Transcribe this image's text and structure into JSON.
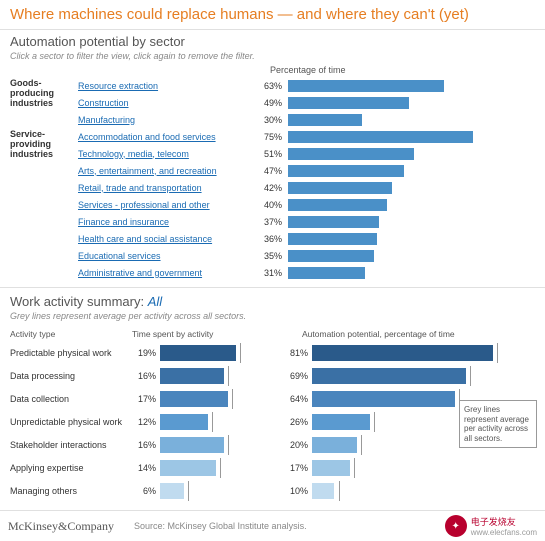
{
  "main_title": "Where machines could replace humans — and where they can't (yet)",
  "section1_title": "Automation potential by sector",
  "hint_text": "Click a sector to filter the view, click again to remove the filter.",
  "pct_header": "Percentage of time",
  "chart1": {
    "type": "bar",
    "bar_color": "#4a90c8",
    "link_color": "#1a6bb3",
    "max": 100,
    "groups": [
      {
        "label": "Goods-producing industries",
        "rows": [
          {
            "name": "Resource extraction",
            "pct": 63
          },
          {
            "name": "Construction",
            "pct": 49
          },
          {
            "name": "Manufacturing",
            "pct": 30
          }
        ]
      },
      {
        "label": "Service-providing industries",
        "rows": [
          {
            "name": "Accommodation and food services",
            "pct": 75
          },
          {
            "name": "Technology, media, telecom",
            "pct": 51
          },
          {
            "name": "Arts, entertainment, and recreation",
            "pct": 47
          },
          {
            "name": "Retail, trade and transportation",
            "pct": 42
          },
          {
            "name": "Services - professional and other",
            "pct": 40
          },
          {
            "name": "Finance and insurance",
            "pct": 37
          },
          {
            "name": "Health care and social assistance",
            "pct": 36
          },
          {
            "name": "Educational services",
            "pct": 35
          },
          {
            "name": "Administrative and government",
            "pct": 31
          }
        ]
      }
    ]
  },
  "section2_title": "Work activity summary:",
  "section2_all": "All",
  "grey_note": "Grey lines represent average per activity across all sectors.",
  "activity_headers": {
    "col1": "Activity type",
    "col2": "Time spent by activity",
    "col3": "Automation potential, percentage of time"
  },
  "chart2": {
    "type": "bar",
    "max": 100,
    "avg_line_color": "#999999",
    "rows": [
      {
        "label": "Predictable physical work",
        "time_pct": 19,
        "auto_pct": 81,
        "color": "#2a5a8a"
      },
      {
        "label": "Data processing",
        "time_pct": 16,
        "auto_pct": 69,
        "color": "#3a70a5"
      },
      {
        "label": "Data collection",
        "time_pct": 17,
        "auto_pct": 64,
        "color": "#4a85bd"
      },
      {
        "label": "Unpredictable physical work",
        "time_pct": 12,
        "auto_pct": 26,
        "color": "#5a9ad0"
      },
      {
        "label": "Stakeholder interactions",
        "time_pct": 16,
        "auto_pct": 20,
        "color": "#7ab0db"
      },
      {
        "label": "Applying expertise",
        "time_pct": 14,
        "auto_pct": 17,
        "color": "#9cc6e5"
      },
      {
        "label": "Managing others",
        "time_pct": 6,
        "auto_pct": 10,
        "color": "#c0dbef"
      }
    ]
  },
  "tooltip_text": "Grey lines represent average per activity across all sectors.",
  "logo_text": "McKinsey&Company",
  "source_text": "Source: McKinsey Global Institute analysis.",
  "site_name": "电子发烧友",
  "site_url": "www.elecfans.com"
}
